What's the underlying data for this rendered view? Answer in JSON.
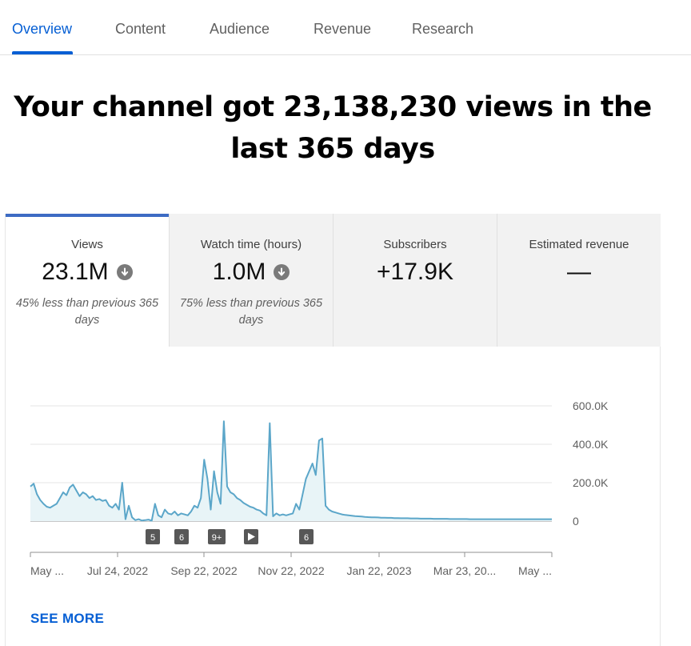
{
  "tabs": [
    {
      "label": "Overview"
    },
    {
      "label": "Content"
    },
    {
      "label": "Audience"
    },
    {
      "label": "Revenue"
    },
    {
      "label": "Research"
    }
  ],
  "headline": {
    "line1": "Your channel got 23,138,230 views in the",
    "line2": "last 365 days"
  },
  "metrics": [
    {
      "label": "Views",
      "value": "23.1M",
      "note": "45% less than previous 365 days",
      "trend_icon": "down-arrow-circle-icon"
    },
    {
      "label": "Watch time (hours)",
      "value": "1.0M",
      "note": "75% less than previous 365 days",
      "trend_icon": "down-arrow-circle-icon"
    },
    {
      "label": "Subscribers",
      "value": "+17.9K",
      "note": ""
    },
    {
      "label": "Estimated revenue",
      "value": "—",
      "note": ""
    }
  ],
  "chart_data": {
    "type": "area",
    "title": "",
    "xlabel": "",
    "ylabel": "",
    "ylim": [
      0,
      600000
    ],
    "y_ticks": [
      "600.0K",
      "400.0K",
      "200.0K",
      "0"
    ],
    "y_tick_values": [
      600000,
      400000,
      200000,
      0
    ],
    "x_ticks": [
      "May ...",
      "Jul 24, 2022",
      "Sep 22, 2022",
      "Nov 22, 2022",
      "Jan 22, 2023",
      "Mar 23, 20...",
      "May ..."
    ],
    "grid": true,
    "series": [
      {
        "values": [
          180000,
          195000,
          140000,
          110000,
          90000,
          75000,
          70000,
          80000,
          90000,
          120000,
          150000,
          135000,
          175000,
          190000,
          160000,
          130000,
          150000,
          140000,
          120000,
          130000,
          110000,
          115000,
          105000,
          110000,
          80000,
          70000,
          90000,
          60000,
          200000,
          10000,
          80000,
          20000,
          5000,
          10000,
          3000,
          5000,
          8000,
          2000,
          90000,
          30000,
          20000,
          60000,
          40000,
          35000,
          50000,
          30000,
          40000,
          35000,
          30000,
          50000,
          80000,
          70000,
          120000,
          320000,
          220000,
          60000,
          260000,
          150000,
          90000,
          520000,
          180000,
          150000,
          140000,
          120000,
          110000,
          95000,
          85000,
          75000,
          70000,
          60000,
          55000,
          40000,
          30000,
          510000,
          25000,
          40000,
          30000,
          35000,
          30000,
          35000,
          40000,
          90000,
          60000,
          140000,
          220000,
          260000,
          300000,
          240000,
          420000,
          430000,
          80000,
          60000,
          50000,
          45000,
          40000,
          35000,
          32000,
          30000,
          28000,
          26000,
          25000,
          24000,
          22000,
          21000,
          20000,
          20000,
          19000,
          18000,
          18000,
          17000,
          17000,
          16000,
          16000,
          15000,
          15000,
          15000,
          14000,
          14000,
          14000,
          13000,
          13000,
          13000,
          13000,
          12000,
          12000,
          12000,
          12000,
          12000,
          11000,
          11000,
          11000,
          11000,
          11000,
          11000,
          10000,
          10000,
          10000,
          10000,
          10000,
          10000,
          10000,
          10000,
          10000,
          10000,
          10000,
          10000,
          10000,
          10000,
          10000,
          10000,
          10000,
          10000,
          10000,
          10000,
          10000,
          10000,
          10000,
          10000,
          10000,
          10000
        ]
      }
    ],
    "markers": [
      {
        "label": "5",
        "kind": "count"
      },
      {
        "label": "6",
        "kind": "count"
      },
      {
        "label": "9+",
        "kind": "count"
      },
      {
        "label": "",
        "kind": "video",
        "icon": "play-icon"
      },
      {
        "label": "6",
        "kind": "count"
      }
    ],
    "colors": {
      "line": "#5ba6c9",
      "fill": "#e8f4f7",
      "grid": "#e5e5e5",
      "marker": "#575757"
    }
  },
  "see_more": "SEE MORE",
  "colors": {
    "accent": "#065fd4",
    "metric_bar": "#3d6bc4"
  }
}
